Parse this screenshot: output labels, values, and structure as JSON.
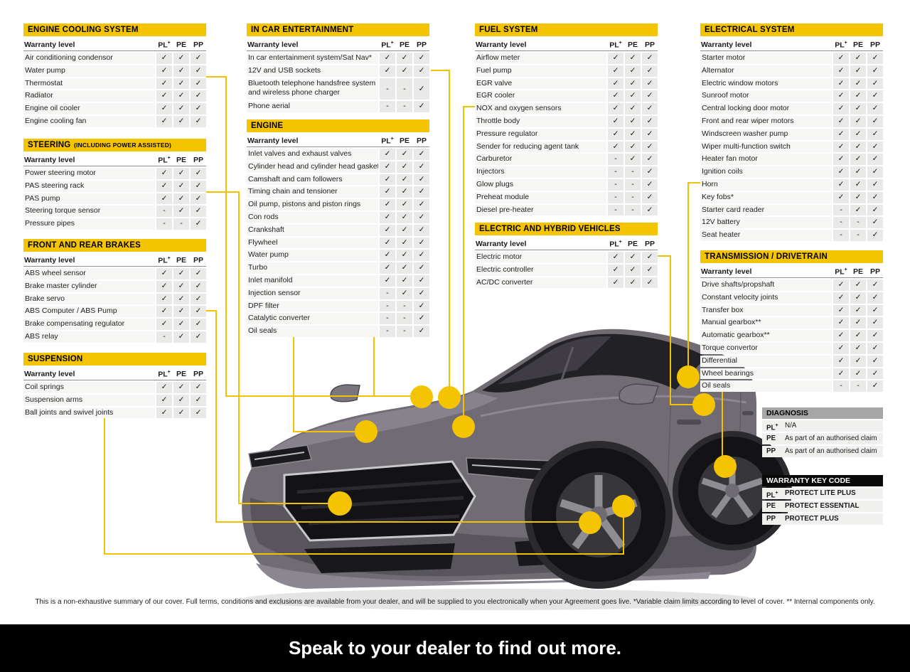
{
  "accent": {
    "yellow": "#F5C400",
    "banner_black": "#000000",
    "diagnosis_grey": "#A6A6A6",
    "car_grey": "#716C73"
  },
  "glyphs": {
    "check": "✓",
    "dash": "-"
  },
  "warranty_header_label": "Warranty level",
  "level_columns": [
    "PL+",
    "PE",
    "PP"
  ],
  "tables": [
    {
      "id": "cooling",
      "title": "ENGINE COOLING SYSTEM",
      "rows": [
        {
          "label": "Air conditioning condensor",
          "values": [
            "✓",
            "✓",
            "✓"
          ]
        },
        {
          "label": "Water pump",
          "values": [
            "✓",
            "✓",
            "✓"
          ]
        },
        {
          "label": "Thermostat",
          "values": [
            "✓",
            "✓",
            "✓"
          ]
        },
        {
          "label": "Radiator",
          "values": [
            "✓",
            "✓",
            "✓"
          ]
        },
        {
          "label": "Engine oil cooler",
          "values": [
            "✓",
            "✓",
            "✓"
          ]
        },
        {
          "label": "Engine cooling fan",
          "values": [
            "✓",
            "✓",
            "✓"
          ]
        }
      ]
    },
    {
      "id": "steering",
      "title": "STEERING",
      "suffix": "(INCLUDING POWER ASSISTED)",
      "rows": [
        {
          "label": "Power steering motor",
          "values": [
            "✓",
            "✓",
            "✓"
          ]
        },
        {
          "label": "PAS steering rack",
          "values": [
            "✓",
            "✓",
            "✓"
          ]
        },
        {
          "label": "PAS pump",
          "values": [
            "✓",
            "✓",
            "✓"
          ]
        },
        {
          "label": "Steering torque sensor",
          "values": [
            "-",
            "✓",
            "✓"
          ]
        },
        {
          "label": "Pressure pipes",
          "values": [
            "-",
            "-",
            "✓"
          ]
        }
      ]
    },
    {
      "id": "brakes",
      "title": "FRONT AND REAR BRAKES",
      "rows": [
        {
          "label": "ABS wheel sensor",
          "values": [
            "✓",
            "✓",
            "✓"
          ]
        },
        {
          "label": "Brake master cylinder",
          "values": [
            "✓",
            "✓",
            "✓"
          ]
        },
        {
          "label": "Brake servo",
          "values": [
            "✓",
            "✓",
            "✓"
          ]
        },
        {
          "label": "ABS Computer / ABS Pump",
          "values": [
            "✓",
            "✓",
            "✓"
          ]
        },
        {
          "label": "Brake compensating regulator",
          "values": [
            "✓",
            "✓",
            "✓"
          ]
        },
        {
          "label": "ABS relay",
          "values": [
            "-",
            "✓",
            "✓"
          ]
        }
      ]
    },
    {
      "id": "suspension",
      "title": "SUSPENSION",
      "rows": [
        {
          "label": "Coil springs",
          "values": [
            "✓",
            "✓",
            "✓"
          ]
        },
        {
          "label": "Suspension arms",
          "values": [
            "✓",
            "✓",
            "✓"
          ]
        },
        {
          "label": "Ball joints and swivel joints",
          "values": [
            "✓",
            "✓",
            "✓"
          ]
        }
      ]
    },
    {
      "id": "incar",
      "title": "IN CAR ENTERTAINMENT",
      "rows": [
        {
          "label": "In car entertainment system/Sat Nav*",
          "values": [
            "✓",
            "✓",
            "✓"
          ]
        },
        {
          "label": "12V and USB sockets",
          "values": [
            "✓",
            "✓",
            "✓"
          ]
        },
        {
          "label": "Bluetooth telephone handsfree system and wireless phone charger",
          "values": [
            "-",
            "-",
            "✓"
          ]
        },
        {
          "label": "Phone aerial",
          "values": [
            "-",
            "-",
            "✓"
          ]
        }
      ]
    },
    {
      "id": "engine",
      "title": "ENGINE",
      "rows": [
        {
          "label": "Inlet valves and exhaust valves",
          "values": [
            "✓",
            "✓",
            "✓"
          ]
        },
        {
          "label": "Cylinder head and cylinder head gasket",
          "values": [
            "✓",
            "✓",
            "✓"
          ]
        },
        {
          "label": "Camshaft and cam followers",
          "values": [
            "✓",
            "✓",
            "✓"
          ]
        },
        {
          "label": "Timing chain and tensioner",
          "values": [
            "✓",
            "✓",
            "✓"
          ]
        },
        {
          "label": "Oil pump, pistons and piston rings",
          "values": [
            "✓",
            "✓",
            "✓"
          ]
        },
        {
          "label": "Con rods",
          "values": [
            "✓",
            "✓",
            "✓"
          ]
        },
        {
          "label": "Crankshaft",
          "values": [
            "✓",
            "✓",
            "✓"
          ]
        },
        {
          "label": "Flywheel",
          "values": [
            "✓",
            "✓",
            "✓"
          ]
        },
        {
          "label": "Water pump",
          "values": [
            "✓",
            "✓",
            "✓"
          ]
        },
        {
          "label": "Turbo",
          "values": [
            "✓",
            "✓",
            "✓"
          ]
        },
        {
          "label": "Inlet manifold",
          "values": [
            "✓",
            "✓",
            "✓"
          ]
        },
        {
          "label": "Injection sensor",
          "values": [
            "-",
            "✓",
            "✓"
          ]
        },
        {
          "label": "DPF filter",
          "values": [
            "-",
            "-",
            "✓"
          ]
        },
        {
          "label": "Catalytic converter",
          "values": [
            "-",
            "-",
            "✓"
          ]
        },
        {
          "label": "Oil seals",
          "values": [
            "-",
            "-",
            "✓"
          ]
        }
      ]
    },
    {
      "id": "fuel",
      "title": "FUEL SYSTEM",
      "rows": [
        {
          "label": "Airflow meter",
          "values": [
            "✓",
            "✓",
            "✓"
          ]
        },
        {
          "label": "Fuel pump",
          "values": [
            "✓",
            "✓",
            "✓"
          ]
        },
        {
          "label": "EGR valve",
          "values": [
            "✓",
            "✓",
            "✓"
          ]
        },
        {
          "label": "EGR cooler",
          "values": [
            "✓",
            "✓",
            "✓"
          ]
        },
        {
          "label": "NOX and oxygen sensors",
          "values": [
            "✓",
            "✓",
            "✓"
          ]
        },
        {
          "label": "Throttle body",
          "values": [
            "✓",
            "✓",
            "✓"
          ]
        },
        {
          "label": "Pressure regulator",
          "values": [
            "✓",
            "✓",
            "✓"
          ]
        },
        {
          "label": "Sender for reducing agent tank",
          "values": [
            "✓",
            "✓",
            "✓"
          ]
        },
        {
          "label": "Carburetor",
          "values": [
            "-",
            "✓",
            "✓"
          ]
        },
        {
          "label": "Injectors",
          "values": [
            "-",
            "-",
            "✓"
          ]
        },
        {
          "label": "Glow plugs",
          "values": [
            "-",
            "-",
            "✓"
          ]
        },
        {
          "label": "Preheat module",
          "values": [
            "-",
            "-",
            "✓"
          ]
        },
        {
          "label": "Diesel pre-heater",
          "values": [
            "-",
            "-",
            "✓"
          ]
        }
      ]
    },
    {
      "id": "hybrid",
      "title": "ELECTRIC AND HYBRID VEHICLES",
      "rows": [
        {
          "label": "Electric motor",
          "values": [
            "✓",
            "✓",
            "✓"
          ]
        },
        {
          "label": "Electric controller",
          "values": [
            "✓",
            "✓",
            "✓"
          ]
        },
        {
          "label": "AC/DC converter",
          "values": [
            "✓",
            "✓",
            "✓"
          ]
        }
      ]
    },
    {
      "id": "electrical",
      "title": "ELECTRICAL SYSTEM",
      "rows": [
        {
          "label": "Starter motor",
          "values": [
            "✓",
            "✓",
            "✓"
          ]
        },
        {
          "label": "Alternator",
          "values": [
            "✓",
            "✓",
            "✓"
          ]
        },
        {
          "label": "Electric window motors",
          "values": [
            "✓",
            "✓",
            "✓"
          ]
        },
        {
          "label": "Sunroof motor",
          "values": [
            "✓",
            "✓",
            "✓"
          ]
        },
        {
          "label": "Central locking door motor",
          "values": [
            "✓",
            "✓",
            "✓"
          ]
        },
        {
          "label": "Front and rear wiper motors",
          "values": [
            "✓",
            "✓",
            "✓"
          ]
        },
        {
          "label": "Windscreen washer pump",
          "values": [
            "✓",
            "✓",
            "✓"
          ]
        },
        {
          "label": "Wiper multi-function switch",
          "values": [
            "✓",
            "✓",
            "✓"
          ]
        },
        {
          "label": "Heater fan motor",
          "values": [
            "✓",
            "✓",
            "✓"
          ]
        },
        {
          "label": "Ignition coils",
          "values": [
            "✓",
            "✓",
            "✓"
          ]
        },
        {
          "label": "Horn",
          "values": [
            "✓",
            "✓",
            "✓"
          ]
        },
        {
          "label": "Key fobs*",
          "values": [
            "✓",
            "✓",
            "✓"
          ]
        },
        {
          "label": "Starter card reader",
          "values": [
            "-",
            "✓",
            "✓"
          ]
        },
        {
          "label": "12V battery",
          "values": [
            "-",
            "-",
            "✓"
          ]
        },
        {
          "label": "Seat heater",
          "values": [
            "-",
            "-",
            "✓"
          ]
        }
      ]
    },
    {
      "id": "transmission",
      "title": "TRANSMISSION / DRIVETRAIN",
      "rows": [
        {
          "label": "Drive shafts/propshaft",
          "values": [
            "✓",
            "✓",
            "✓"
          ]
        },
        {
          "label": "Constant velocity joints",
          "values": [
            "✓",
            "✓",
            "✓"
          ]
        },
        {
          "label": "Transfer box",
          "values": [
            "✓",
            "✓",
            "✓"
          ]
        },
        {
          "label": "Manual gearbox**",
          "values": [
            "✓",
            "✓",
            "✓"
          ]
        },
        {
          "label": "Automatic gearbox**",
          "values": [
            "✓",
            "✓",
            "✓"
          ]
        },
        {
          "label": "Torque convertor",
          "values": [
            "✓",
            "✓",
            "✓"
          ]
        },
        {
          "label": "Differential",
          "values": [
            "✓",
            "✓",
            "✓"
          ]
        },
        {
          "label": "Wheel bearings",
          "values": [
            "✓",
            "✓",
            "✓"
          ]
        },
        {
          "label": "Oil seals",
          "values": [
            "-",
            "-",
            "✓"
          ]
        }
      ]
    }
  ],
  "diagnosis": {
    "title": "DIAGNOSIS",
    "rows": [
      {
        "key": "PL+",
        "text": "N/A"
      },
      {
        "key": "PE",
        "text": "As part of an authorised claim"
      },
      {
        "key": "PP",
        "text": "As part of an authorised claim"
      }
    ]
  },
  "warranty_key_code": {
    "title": "WARRANTY KEY CODE",
    "rows": [
      {
        "key": "PL+",
        "text": "PROTECT LITE PLUS"
      },
      {
        "key": "PE",
        "text": "PROTECT ESSENTIAL"
      },
      {
        "key": "PP",
        "text": "PROTECT PLUS"
      }
    ]
  },
  "footer": {
    "text": "This is a non-exhaustive summary of our cover. Full terms, conditions and exclusions are available from your dealer, and will be supplied to you electronically when your Agreement goes live. *Variable claim limits according to level of cover. ** Internal components only."
  },
  "banner": {
    "text": "Speak to your dealer to find out more."
  }
}
